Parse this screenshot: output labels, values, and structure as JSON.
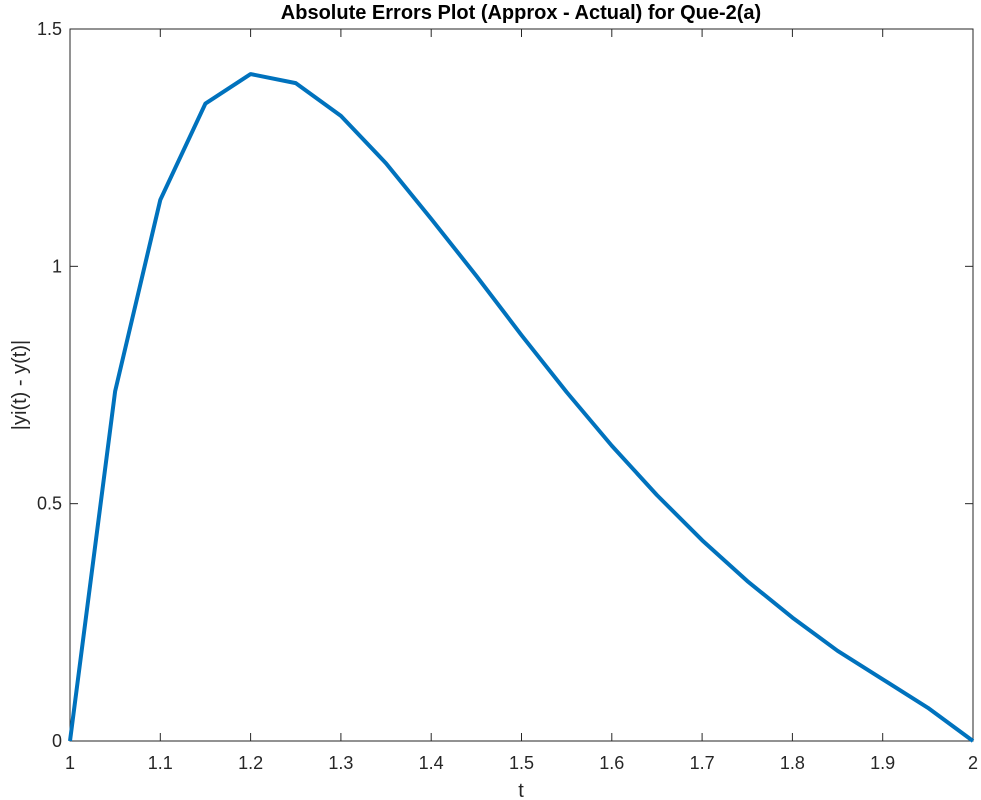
{
  "chart_data": {
    "type": "line",
    "title": "Absolute Errors Plot (Approx - Actual) for Que-2(a)",
    "xlabel": "t",
    "ylabel": "|yi(t) - y(t)|",
    "xlim": [
      1,
      2
    ],
    "ylim": [
      0,
      1.5
    ],
    "xticks": [
      1,
      1.1,
      1.2,
      1.3,
      1.4,
      1.5,
      1.6,
      1.7,
      1.8,
      1.9,
      2
    ],
    "xtick_labels": [
      "1",
      "1.1",
      "1.2",
      "1.3",
      "1.4",
      "1.5",
      "1.6",
      "1.7",
      "1.8",
      "1.9",
      "2"
    ],
    "yticks": [
      0,
      0.5,
      1,
      1.5
    ],
    "ytick_labels": [
      "0",
      "0.5",
      "1",
      "1.5"
    ],
    "grid": false,
    "box": true,
    "series": [
      {
        "color": "#0072BD",
        "x": [
          1.0,
          1.05,
          1.1,
          1.15,
          1.2,
          1.25,
          1.3,
          1.35,
          1.4,
          1.45,
          1.5,
          1.55,
          1.6,
          1.65,
          1.7,
          1.75,
          1.8,
          1.85,
          1.9,
          1.95,
          2.0
        ],
        "y": [
          0.0,
          0.737,
          1.14,
          1.343,
          1.405,
          1.386,
          1.317,
          1.217,
          1.1,
          0.98,
          0.855,
          0.735,
          0.622,
          0.518,
          0.423,
          0.337,
          0.26,
          0.19,
          0.13,
          0.07,
          0.0
        ]
      }
    ]
  }
}
